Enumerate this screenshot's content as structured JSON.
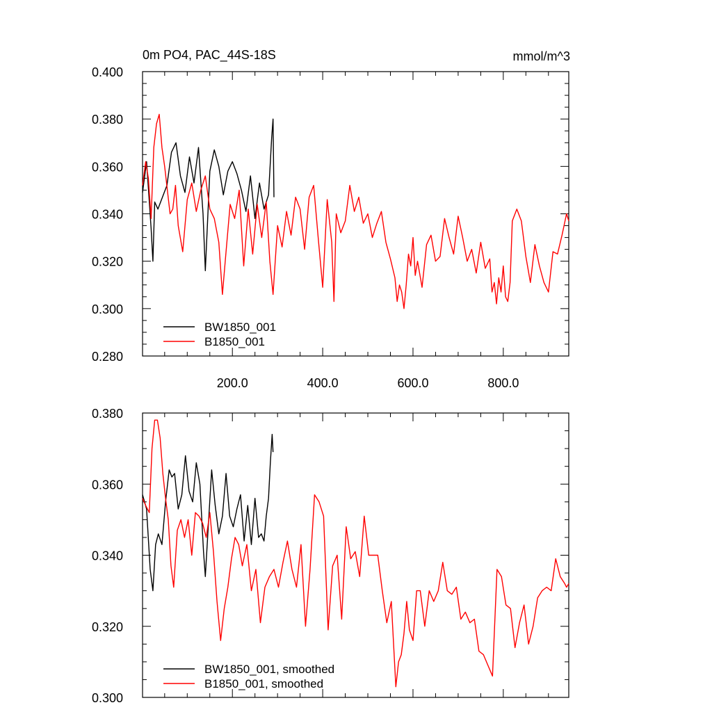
{
  "chart_data": [
    {
      "type": "line",
      "title": "0m PO4, PAC_44S-18S",
      "units": "mmol/m^3",
      "xlim": [
        1,
        945
      ],
      "ylim": [
        0.28,
        0.4
      ],
      "yticks": [
        "0.280",
        "0.300",
        "0.320",
        "0.340",
        "0.360",
        "0.380",
        "0.400"
      ],
      "xticks": [
        "200.0",
        "400.0",
        "600.0",
        "800.0"
      ],
      "legend_placement": "lower-left",
      "series": [
        {
          "name": "BW1850_001",
          "color": "#000000",
          "x": [
            1,
            10,
            20,
            24,
            28,
            35,
            45,
            55,
            65,
            75,
            85,
            95,
            105,
            115,
            125,
            135,
            140,
            150,
            160,
            170,
            180,
            190,
            200,
            210,
            220,
            230,
            240,
            250,
            260,
            270,
            280,
            287,
            290,
            292
          ],
          "y": [
            0.349,
            0.362,
            0.334,
            0.32,
            0.345,
            0.342,
            0.347,
            0.352,
            0.366,
            0.37,
            0.356,
            0.349,
            0.364,
            0.353,
            0.368,
            0.34,
            0.316,
            0.358,
            0.367,
            0.36,
            0.348,
            0.358,
            0.362,
            0.357,
            0.35,
            0.341,
            0.356,
            0.338,
            0.353,
            0.342,
            0.348,
            0.372,
            0.38,
            0.347
          ]
        },
        {
          "name": "B1850_001",
          "color": "#ff0000",
          "x": [
            1,
            8,
            14,
            20,
            26,
            32,
            38,
            44,
            50,
            56,
            62,
            68,
            74,
            80,
            90,
            100,
            110,
            120,
            130,
            140,
            150,
            160,
            170,
            178,
            185,
            195,
            205,
            215,
            225,
            235,
            245,
            255,
            265,
            275,
            283,
            290,
            300,
            310,
            320,
            330,
            340,
            350,
            360,
            370,
            380,
            390,
            400,
            410,
            420,
            425,
            430,
            440,
            450,
            460,
            470,
            480,
            490,
            500,
            510,
            520,
            530,
            540,
            550,
            560,
            565,
            570,
            575,
            580,
            585,
            590,
            595,
            600,
            605,
            610,
            620,
            630,
            640,
            650,
            660,
            670,
            680,
            690,
            700,
            710,
            720,
            730,
            740,
            750,
            760,
            770,
            775,
            780,
            785,
            790,
            795,
            800,
            805,
            810,
            815,
            820,
            830,
            840,
            850,
            860,
            870,
            880,
            890,
            900,
            910,
            920,
            930,
            940,
            945
          ],
          "y": [
            0.352,
            0.362,
            0.355,
            0.338,
            0.368,
            0.378,
            0.382,
            0.368,
            0.36,
            0.35,
            0.34,
            0.342,
            0.352,
            0.335,
            0.324,
            0.346,
            0.353,
            0.341,
            0.35,
            0.356,
            0.342,
            0.338,
            0.328,
            0.306,
            0.322,
            0.344,
            0.338,
            0.35,
            0.318,
            0.342,
            0.323,
            0.344,
            0.33,
            0.345,
            0.32,
            0.306,
            0.335,
            0.326,
            0.341,
            0.331,
            0.347,
            0.342,
            0.325,
            0.347,
            0.352,
            0.33,
            0.309,
            0.346,
            0.328,
            0.303,
            0.34,
            0.332,
            0.337,
            0.352,
            0.341,
            0.347,
            0.336,
            0.34,
            0.33,
            0.336,
            0.341,
            0.328,
            0.321,
            0.313,
            0.303,
            0.31,
            0.307,
            0.3,
            0.31,
            0.323,
            0.318,
            0.33,
            0.314,
            0.32,
            0.309,
            0.327,
            0.331,
            0.32,
            0.322,
            0.338,
            0.33,
            0.323,
            0.339,
            0.33,
            0.32,
            0.325,
            0.315,
            0.328,
            0.317,
            0.321,
            0.307,
            0.311,
            0.302,
            0.313,
            0.307,
            0.318,
            0.305,
            0.303,
            0.311,
            0.337,
            0.342,
            0.337,
            0.322,
            0.311,
            0.327,
            0.318,
            0.311,
            0.307,
            0.324,
            0.323,
            0.331,
            0.34,
            0.337
          ]
        }
      ]
    },
    {
      "type": "line",
      "xlim": [
        1,
        945
      ],
      "ylim": [
        0.3,
        0.38
      ],
      "yticks": [
        "0.300",
        "0.320",
        "0.340",
        "0.360",
        "0.380"
      ],
      "legend_placement": "lower-left",
      "series": [
        {
          "name": "BW1850_001, smoothed",
          "color": "#000000",
          "x": [
            1,
            10,
            18,
            24,
            30,
            36,
            44,
            52,
            60,
            66,
            72,
            80,
            88,
            96,
            104,
            112,
            120,
            128,
            136,
            140,
            146,
            154,
            162,
            170,
            178,
            186,
            194,
            202,
            210,
            218,
            226,
            234,
            242,
            250,
            258,
            264,
            270,
            275,
            280,
            284,
            288,
            290
          ],
          "y": [
            0.357,
            0.353,
            0.336,
            0.33,
            0.343,
            0.346,
            0.343,
            0.355,
            0.364,
            0.362,
            0.363,
            0.353,
            0.357,
            0.368,
            0.358,
            0.355,
            0.366,
            0.36,
            0.341,
            0.334,
            0.347,
            0.364,
            0.354,
            0.346,
            0.351,
            0.363,
            0.351,
            0.348,
            0.353,
            0.357,
            0.344,
            0.354,
            0.343,
            0.356,
            0.345,
            0.346,
            0.344,
            0.351,
            0.356,
            0.366,
            0.374,
            0.369
          ]
        },
        {
          "name": "B1850_001, smoothed",
          "color": "#ff0000",
          "x": [
            1,
            8,
            16,
            22,
            28,
            34,
            40,
            46,
            52,
            58,
            64,
            70,
            78,
            86,
            94,
            102,
            110,
            118,
            126,
            134,
            142,
            150,
            158,
            166,
            174,
            182,
            190,
            198,
            206,
            214,
            222,
            232,
            242,
            252,
            262,
            272,
            282,
            292,
            302,
            312,
            322,
            332,
            342,
            352,
            362,
            372,
            382,
            392,
            402,
            412,
            422,
            432,
            442,
            452,
            462,
            472,
            482,
            492,
            502,
            512,
            522,
            532,
            542,
            552,
            562,
            568,
            574,
            580,
            586,
            592,
            600,
            608,
            616,
            626,
            636,
            646,
            656,
            666,
            676,
            686,
            696,
            706,
            716,
            726,
            736,
            746,
            756,
            766,
            776,
            786,
            796,
            806,
            816,
            826,
            836,
            846,
            856,
            866,
            876,
            886,
            896,
            906,
            916,
            926,
            936,
            940,
            945
          ],
          "y": [
            0.356,
            0.354,
            0.352,
            0.37,
            0.378,
            0.378,
            0.373,
            0.363,
            0.356,
            0.35,
            0.337,
            0.331,
            0.347,
            0.35,
            0.345,
            0.35,
            0.34,
            0.352,
            0.351,
            0.349,
            0.345,
            0.352,
            0.341,
            0.327,
            0.316,
            0.325,
            0.331,
            0.339,
            0.345,
            0.343,
            0.337,
            0.343,
            0.33,
            0.336,
            0.321,
            0.331,
            0.334,
            0.336,
            0.331,
            0.338,
            0.344,
            0.336,
            0.331,
            0.343,
            0.32,
            0.336,
            0.357,
            0.355,
            0.351,
            0.319,
            0.337,
            0.34,
            0.322,
            0.348,
            0.339,
            0.341,
            0.334,
            0.351,
            0.34,
            0.34,
            0.34,
            0.33,
            0.321,
            0.327,
            0.303,
            0.31,
            0.312,
            0.318,
            0.327,
            0.319,
            0.316,
            0.33,
            0.33,
            0.32,
            0.33,
            0.327,
            0.33,
            0.338,
            0.33,
            0.329,
            0.331,
            0.322,
            0.324,
            0.321,
            0.322,
            0.313,
            0.312,
            0.309,
            0.306,
            0.336,
            0.334,
            0.326,
            0.325,
            0.314,
            0.321,
            0.326,
            0.315,
            0.32,
            0.328,
            0.33,
            0.331,
            0.33,
            0.339,
            0.334,
            0.332,
            0.331,
            0.332
          ]
        }
      ]
    }
  ]
}
